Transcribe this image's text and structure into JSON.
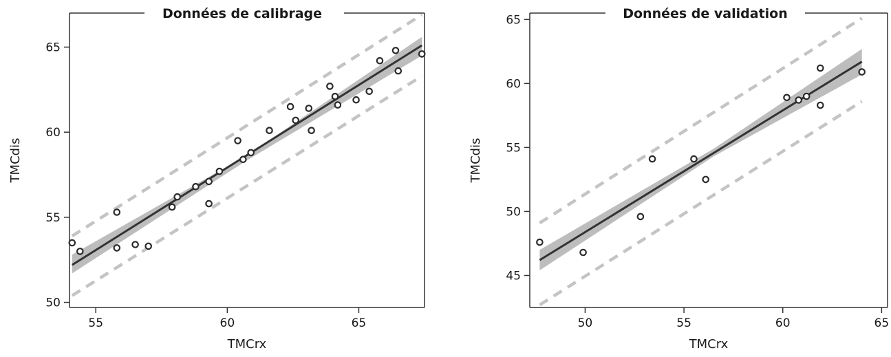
{
  "chart_data": [
    {
      "type": "scatter",
      "title": "Données de calibrage",
      "xlabel": "TMCrx",
      "ylabel": "TMCdis",
      "xlim": [
        54.0,
        67.5
      ],
      "ylim": [
        49.7,
        67.0
      ],
      "x_ticks": [
        "55",
        "60",
        "65"
      ],
      "y_ticks": [
        "50",
        "55",
        "60",
        "65"
      ],
      "points": [
        {
          "x": 54.1,
          "y": 53.5
        },
        {
          "x": 54.4,
          "y": 53.0
        },
        {
          "x": 55.8,
          "y": 55.3
        },
        {
          "x": 55.8,
          "y": 53.2
        },
        {
          "x": 56.5,
          "y": 53.4
        },
        {
          "x": 57.0,
          "y": 53.3
        },
        {
          "x": 57.9,
          "y": 55.6
        },
        {
          "x": 58.1,
          "y": 56.2
        },
        {
          "x": 58.8,
          "y": 56.8
        },
        {
          "x": 59.3,
          "y": 55.8
        },
        {
          "x": 59.3,
          "y": 57.1
        },
        {
          "x": 59.7,
          "y": 57.7
        },
        {
          "x": 60.4,
          "y": 59.5
        },
        {
          "x": 60.6,
          "y": 58.4
        },
        {
          "x": 60.9,
          "y": 58.8
        },
        {
          "x": 61.6,
          "y": 60.1
        },
        {
          "x": 62.4,
          "y": 61.5
        },
        {
          "x": 62.6,
          "y": 60.7
        },
        {
          "x": 63.1,
          "y": 61.4
        },
        {
          "x": 63.2,
          "y": 60.1
        },
        {
          "x": 63.9,
          "y": 62.7
        },
        {
          "x": 64.1,
          "y": 62.1
        },
        {
          "x": 64.2,
          "y": 61.6
        },
        {
          "x": 64.9,
          "y": 61.9
        },
        {
          "x": 65.4,
          "y": 62.4
        },
        {
          "x": 65.8,
          "y": 64.2
        },
        {
          "x": 66.4,
          "y": 64.8
        },
        {
          "x": 66.5,
          "y": 63.6
        },
        {
          "x": 67.4,
          "y": 64.6
        }
      ],
      "fit_line": {
        "x": [
          54.1,
          67.4
        ],
        "y": [
          52.2,
          65.1
        ]
      },
      "confidence_band": {
        "x": [
          54.1,
          60.7,
          67.4
        ],
        "upper": [
          52.8,
          58.6,
          65.6
        ],
        "lower": [
          51.7,
          58.3,
          64.5
        ]
      },
      "prediction_upper": {
        "x": [
          54.1,
          67.4
        ],
        "y": [
          53.9,
          66.9
        ]
      },
      "prediction_lower": {
        "x": [
          54.1,
          67.4
        ],
        "y": [
          50.4,
          63.3
        ]
      },
      "grid": false,
      "legend": "none"
    },
    {
      "type": "scatter",
      "title": "Données de validation",
      "xlabel": "TMCrx",
      "ylabel": "TMCdis",
      "xlim": [
        47.2,
        65.3
      ],
      "ylim": [
        42.5,
        65.5
      ],
      "x_ticks": [
        "50",
        "55",
        "60",
        "65"
      ],
      "y_ticks": [
        "45",
        "50",
        "55",
        "60",
        "65"
      ],
      "points": [
        {
          "x": 47.7,
          "y": 47.6
        },
        {
          "x": 49.9,
          "y": 46.8
        },
        {
          "x": 52.8,
          "y": 49.6
        },
        {
          "x": 53.4,
          "y": 54.1
        },
        {
          "x": 55.5,
          "y": 54.1
        },
        {
          "x": 56.1,
          "y": 52.5
        },
        {
          "x": 60.2,
          "y": 58.9
        },
        {
          "x": 60.8,
          "y": 58.7
        },
        {
          "x": 61.2,
          "y": 59.0
        },
        {
          "x": 61.9,
          "y": 61.2
        },
        {
          "x": 61.9,
          "y": 58.3
        },
        {
          "x": 64.0,
          "y": 60.9
        }
      ],
      "fit_line": {
        "x": [
          47.7,
          64.0
        ],
        "y": [
          46.2,
          61.7
        ]
      },
      "confidence_band": {
        "x": [
          47.7,
          56.5,
          64.0
        ],
        "upper": [
          47.0,
          54.9,
          62.7
        ],
        "lower": [
          45.4,
          54.3,
          60.7
        ]
      },
      "prediction_upper": {
        "x": [
          47.7,
          64.0
        ],
        "y": [
          49.1,
          65.1
        ]
      },
      "prediction_lower": {
        "x": [
          47.7,
          64.0
        ],
        "y": [
          42.7,
          58.6
        ]
      },
      "grid": false,
      "legend": "none"
    }
  ]
}
